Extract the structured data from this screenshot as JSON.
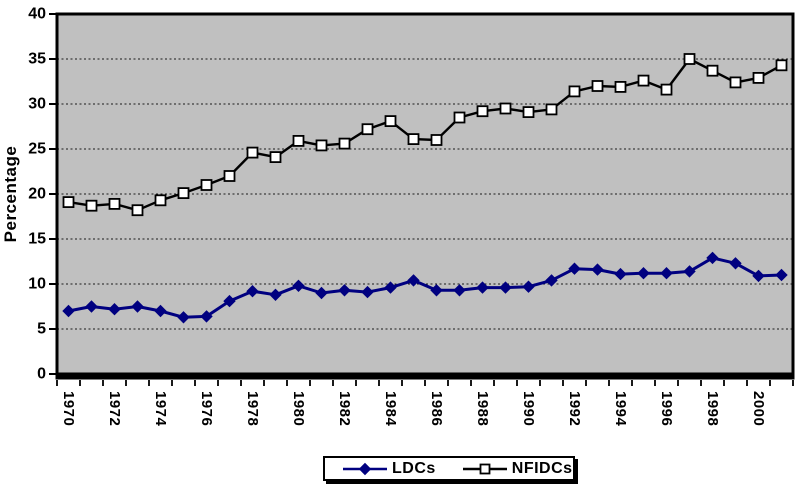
{
  "chart_data": {
    "type": "line",
    "title": "",
    "xlabel": "",
    "ylabel": "Percentage",
    "ylim": [
      0,
      40
    ],
    "ytick_step": 5,
    "xtick_label_every": 2,
    "grid": true,
    "legend_position": "bottom-center",
    "plot_bg_color": "#c0c0c0",
    "gridline_color": "#1a1a1a",
    "axis_color": "#000000",
    "x": [
      1970,
      1971,
      1972,
      1973,
      1974,
      1975,
      1976,
      1977,
      1978,
      1979,
      1980,
      1981,
      1982,
      1983,
      1984,
      1985,
      1986,
      1987,
      1988,
      1989,
      1990,
      1991,
      1992,
      1993,
      1994,
      1995,
      1996,
      1997,
      1998,
      1999,
      2000,
      2001
    ],
    "series": [
      {
        "name": "LDCs",
        "color": "#000080",
        "marker": "diamond",
        "marker_fill": "#000080",
        "values": [
          7.0,
          7.5,
          7.2,
          7.5,
          7.0,
          6.3,
          6.4,
          8.1,
          9.2,
          8.8,
          9.8,
          9.0,
          9.3,
          9.1,
          9.6,
          10.4,
          9.3,
          9.3,
          9.6,
          9.6,
          9.7,
          10.4,
          11.7,
          11.6,
          11.1,
          11.2,
          11.2,
          11.4,
          12.9,
          12.3,
          10.9,
          11.0
        ]
      },
      {
        "name": "NFIDCs",
        "color": "#000000",
        "marker": "square",
        "marker_fill": "#ffffff",
        "values": [
          19.1,
          18.7,
          18.9,
          18.2,
          19.3,
          20.1,
          21.0,
          22.0,
          24.6,
          24.1,
          25.9,
          25.4,
          25.6,
          27.2,
          28.1,
          26.1,
          26.0,
          28.5,
          29.2,
          29.5,
          29.1,
          29.4,
          31.4,
          32.0,
          31.9,
          32.6,
          31.6,
          35.0,
          33.7,
          32.4,
          32.9,
          34.3
        ]
      }
    ]
  }
}
